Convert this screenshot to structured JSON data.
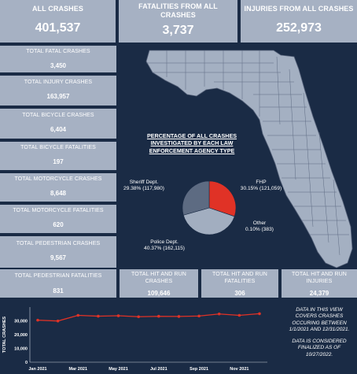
{
  "header": {
    "all_crashes": {
      "label": "ALL CRASHES",
      "value": "401,537"
    },
    "fatalities": {
      "label": "FATALITIES FROM ALL CRASHES",
      "value": "3,737"
    },
    "injuries": {
      "label": "INJURIES FROM ALL CRASHES",
      "value": "252,973"
    }
  },
  "side": [
    {
      "label": "TOTAL FATAL CRASHES",
      "value": "3,450"
    },
    {
      "label": "TOTAL INJURY CRASHES",
      "value": "163,957"
    },
    {
      "label": "TOTAL BICYCLE CRASHES",
      "value": "6,404"
    },
    {
      "label": "TOTAL BICYCLE FATALITIES",
      "value": "197"
    },
    {
      "label": "TOTAL MOTORCYCLE CRASHES",
      "value": "8,648"
    },
    {
      "label": "TOTAL MOTORCYCLE FATALITIES",
      "value": "620"
    },
    {
      "label": "TOTAL PEDESTRIAN CRASHES",
      "value": "9,567"
    }
  ],
  "bottom": [
    {
      "label": "TOTAL PEDESTRIAN FATALITIES",
      "value": "831"
    },
    {
      "label": "TOTAL HIT AND RUN CRASHES",
      "value": "109,646"
    },
    {
      "label": "TOTAL HIT AND RUN FATALITIES",
      "value": "306"
    },
    {
      "label": "TOTAL HIT AND RUN INJURIES",
      "value": "24,379"
    }
  ],
  "map": {
    "title": "PERCENTAGE OF ALL CRASHES INVESTIGATED BY EACH LAW ENFORCEMENT AGENCY TYPE",
    "pie": [
      {
        "name": "FHP",
        "text": "30.15% (121,059)",
        "percent": 30.15,
        "color": "#e03226"
      },
      {
        "name": "Other",
        "text": "0.10% (383)",
        "percent": 0.1,
        "color": "#9aa6b8"
      },
      {
        "name": "Police Dept.",
        "text": "40.37% (162,115)",
        "percent": 40.37,
        "color": "#a2aec0"
      },
      {
        "name": "Sheriff Dept.",
        "text": "29.38% (117,980)",
        "percent": 29.38,
        "color": "#5d6b82"
      }
    ]
  },
  "chart_data": {
    "type": "line",
    "title": "",
    "ylabel": "TOTAL CRASHES",
    "xlabel": "",
    "ylim": [
      0,
      40000
    ],
    "yticks": [
      0,
      10000,
      20000,
      30000
    ],
    "ytick_labels": [
      "0",
      "10,000",
      "20,000",
      "30,000"
    ],
    "xtick_labels": [
      "Jan 2021",
      "Mar 2021",
      "May 2021",
      "Jul 2021",
      "Sep 2021",
      "Nov 2021"
    ],
    "x": [
      "Jan 2021",
      "Feb 2021",
      "Mar 2021",
      "Apr 2021",
      "May 2021",
      "Jun 2021",
      "Jul 2021",
      "Aug 2021",
      "Sep 2021",
      "Oct 2021",
      "Nov 2021",
      "Dec 2021"
    ],
    "series": [
      {
        "values": [
          30500,
          29900,
          34000,
          33400,
          33700,
          33000,
          33300,
          33200,
          33500,
          35000,
          34000,
          35200
        ],
        "color": "#e03226"
      }
    ],
    "grid": false
  },
  "notes": {
    "range": "DATA IN THIS VIEW COVERS CRASHES OCCURING BETWEEN 1/1/2021 AND 12/31/2021.",
    "finalized": "DATA IS CONSIDERED FINALIZED AS OF 10/27/2022."
  }
}
